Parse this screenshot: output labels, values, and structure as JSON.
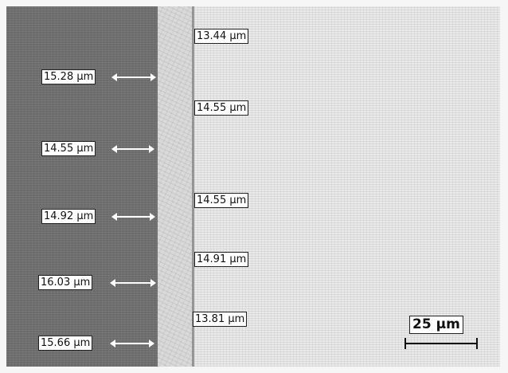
{
  "image": {
    "left_measurements": [
      {
        "label": "15.28 µm"
      },
      {
        "label": "14.55 µm"
      },
      {
        "label": "14.92 µm"
      },
      {
        "label": "16.03 µm"
      },
      {
        "label": "15.66 µm"
      }
    ],
    "right_measurements": [
      {
        "label": "13.44 µm"
      },
      {
        "label": "14.55 µm"
      },
      {
        "label": "14.55 µm"
      },
      {
        "label": "14.91 µm"
      },
      {
        "label": "13.81 µm"
      }
    ],
    "scale_bar": {
      "label": "25 µm"
    }
  }
}
